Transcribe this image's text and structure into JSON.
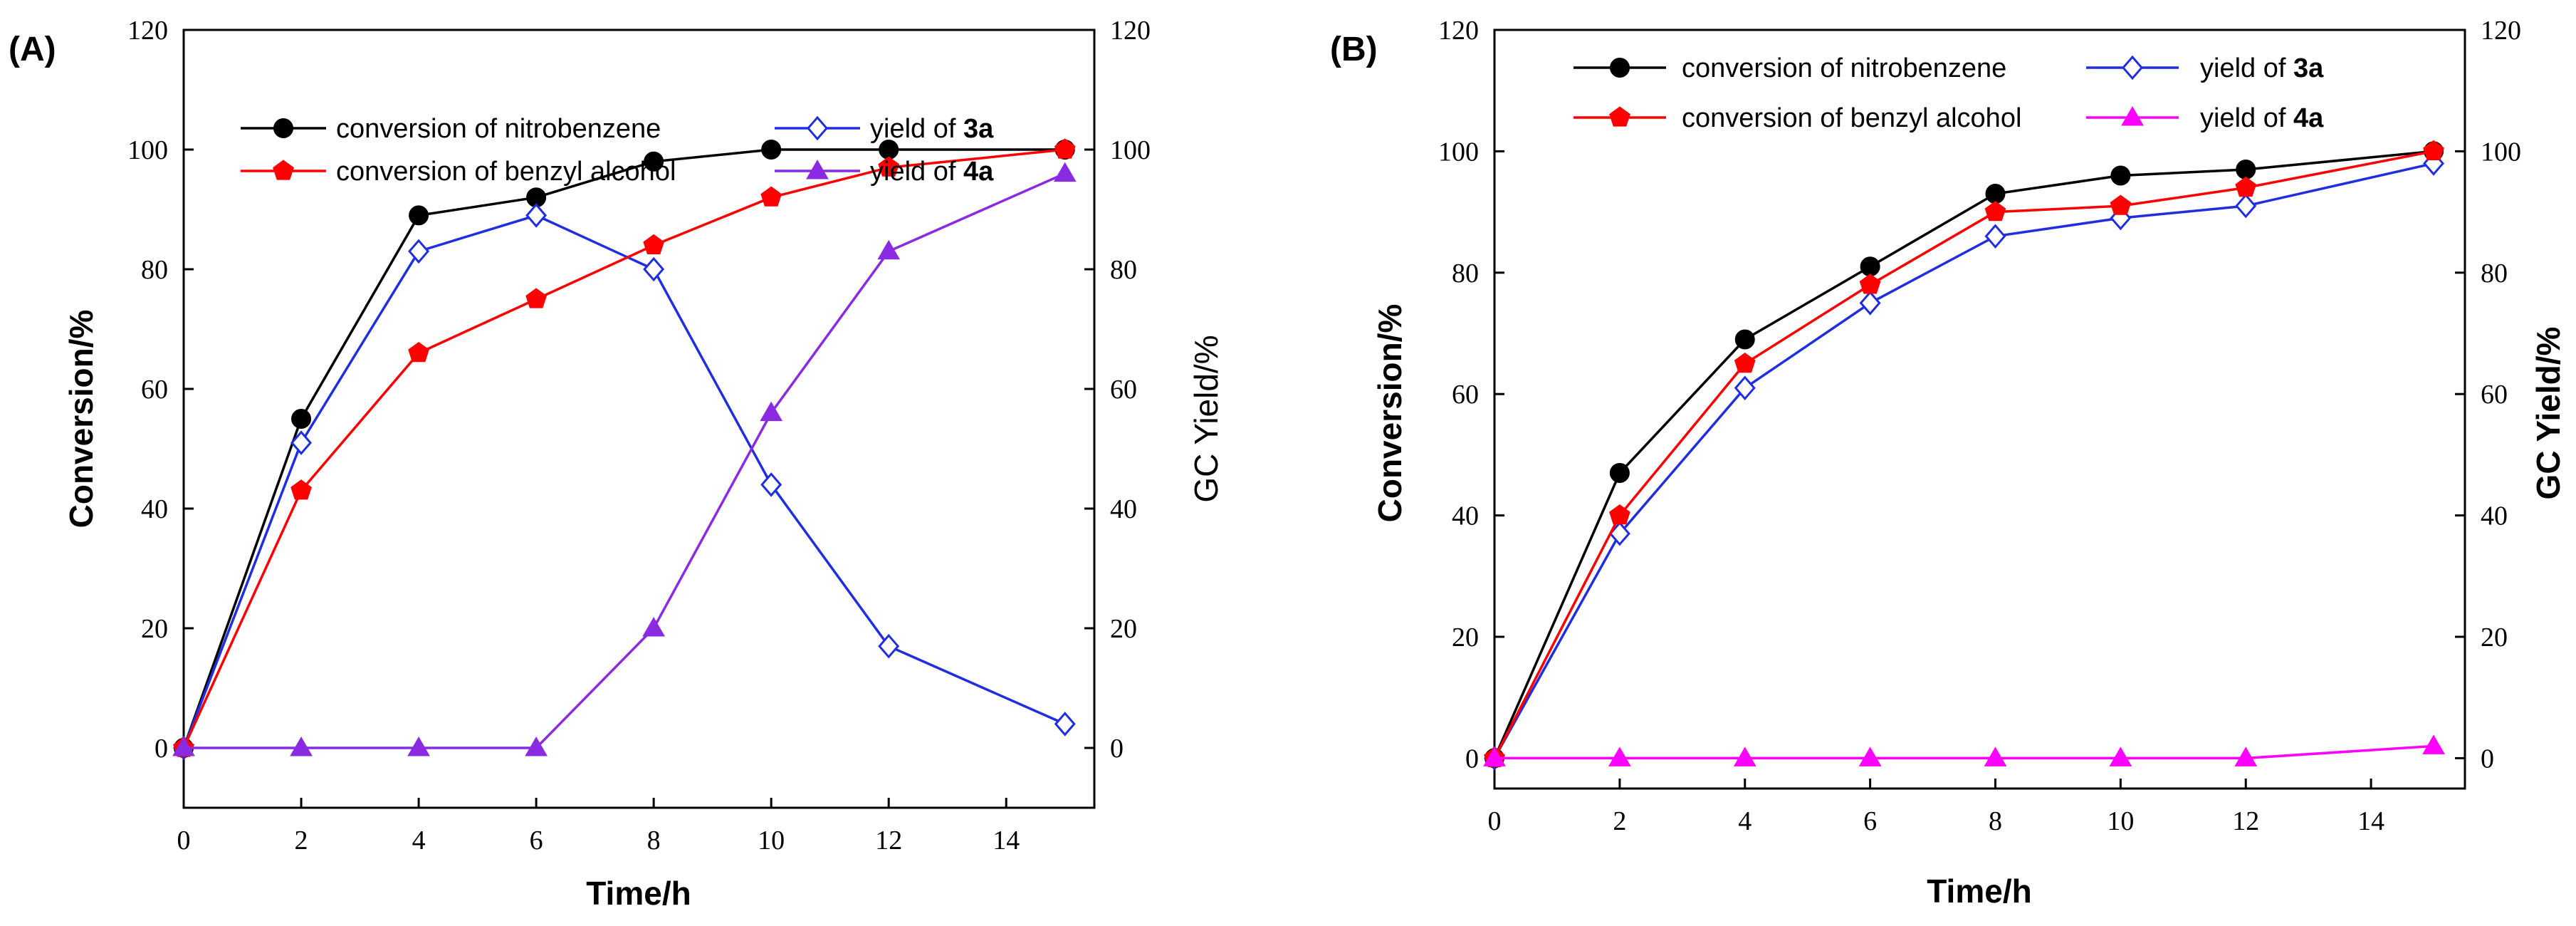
{
  "chart_data": [
    {
      "type": "line",
      "panel_label": "(A)",
      "xlabel": "Time/h",
      "ylabel": "Conversion/%",
      "y2label": "GC Yield/%",
      "xlim": [
        0,
        15.5
      ],
      "ylim": [
        -10,
        120
      ],
      "xticks": [
        "0",
        "2",
        "4",
        "6",
        "8",
        "10",
        "12",
        "14"
      ],
      "yticks": [
        "0",
        "20",
        "40",
        "60",
        "80",
        "100",
        "120"
      ],
      "y2label_bold": false,
      "legend_position": "top",
      "series": [
        {
          "name": "conversion of nitrobenzene",
          "name_prefix": "conversion of nitrobenzene",
          "name_bold": "",
          "color": "#000000",
          "marker": "circle",
          "x": [
            0,
            2,
            4,
            6,
            8,
            10,
            12,
            15
          ],
          "values": [
            0,
            55,
            89,
            92,
            98,
            100,
            100,
            100
          ]
        },
        {
          "name": "yield of 3a",
          "name_prefix": "yield of ",
          "name_bold": "3a",
          "color": "#1f2fe0",
          "marker": "diamond",
          "x": [
            0,
            2,
            4,
            6,
            8,
            10,
            12,
            15
          ],
          "values": [
            0,
            51,
            83,
            89,
            80,
            44,
            17,
            4
          ]
        },
        {
          "name": "conversion of benzyl alcohol",
          "name_prefix": "conversion of benzyl alcohol",
          "name_bold": "",
          "color": "#ff0000",
          "marker": "pentagon",
          "x": [
            0,
            2,
            4,
            6,
            8,
            10,
            12,
            15
          ],
          "values": [
            0,
            43,
            66,
            75,
            84,
            92,
            97,
            100
          ]
        },
        {
          "name": "yield of 4a",
          "name_prefix": "yield of ",
          "name_bold": "4a",
          "color": "#8a2be2",
          "marker": "triangle",
          "x": [
            0,
            2,
            4,
            6,
            8,
            10,
            12,
            15
          ],
          "values": [
            0,
            0,
            0,
            0,
            20,
            56,
            83,
            96
          ]
        }
      ]
    },
    {
      "type": "line",
      "panel_label": "(B)",
      "xlabel": "Time/h",
      "ylabel": "Conversion/%",
      "y2label": "GC Yield/%",
      "xlim": [
        0,
        15.5
      ],
      "ylim": [
        -5,
        120
      ],
      "xticks": [
        "0",
        "2",
        "4",
        "6",
        "8",
        "10",
        "12",
        "14"
      ],
      "yticks": [
        "0",
        "20",
        "40",
        "60",
        "80",
        "100",
        "120"
      ],
      "y2label_bold": true,
      "legend_position": "top",
      "series": [
        {
          "name": "conversion of nitrobenzene",
          "name_prefix": "conversion of nitrobenzene",
          "name_bold": "",
          "color": "#000000",
          "marker": "circle",
          "x": [
            0,
            2,
            4,
            6,
            8,
            10,
            12,
            15
          ],
          "values": [
            0,
            47,
            69,
            81,
            93,
            96,
            97,
            100
          ]
        },
        {
          "name": "yield of 3a",
          "name_prefix": "yield of ",
          "name_bold": "3a",
          "color": "#1f2fe0",
          "marker": "diamond",
          "x": [
            0,
            2,
            4,
            6,
            8,
            10,
            12,
            15
          ],
          "values": [
            0,
            37,
            61,
            75,
            86,
            89,
            91,
            98
          ]
        },
        {
          "name": "conversion of benzyl alcohol",
          "name_prefix": "conversion of benzyl alcohol",
          "name_bold": "",
          "color": "#ff0000",
          "marker": "pentagon",
          "x": [
            0,
            2,
            4,
            6,
            8,
            10,
            12,
            15
          ],
          "values": [
            0,
            40,
            65,
            78,
            90,
            91,
            94,
            100
          ]
        },
        {
          "name": "yield of 4a",
          "name_prefix": "yield of ",
          "name_bold": "4a",
          "color": "#ff00ff",
          "marker": "triangle",
          "x": [
            0,
            2,
            4,
            6,
            8,
            10,
            12,
            15
          ],
          "values": [
            0,
            0,
            0,
            0,
            0,
            0,
            0,
            2
          ]
        }
      ]
    }
  ]
}
